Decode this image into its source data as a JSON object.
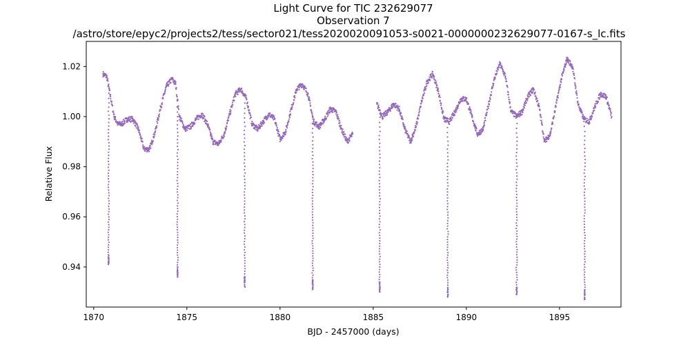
{
  "chart_data": {
    "type": "scatter",
    "title_lines": [
      "Light Curve for TIC 232629077",
      "Observation 7",
      "/astro/store/epyc2/projects2/tess/sector021/tess2020020091053-s0021-0000000232629077-0167-s_lc.fits"
    ],
    "xlabel": "BJD - 2457000 (days)",
    "ylabel": "Relative Flux",
    "xlim": [
      1869.6,
      1898.3
    ],
    "ylim": [
      0.924,
      1.03
    ],
    "xticks": [
      1870,
      1875,
      1880,
      1885,
      1890,
      1895
    ],
    "yticks": [
      0.94,
      0.96,
      0.98,
      1.0,
      1.02
    ],
    "ytick_labels": [
      "0.94",
      "0.96",
      "0.98",
      "1.00",
      "1.02"
    ],
    "grid": false,
    "point_color": "#9467bd",
    "series": [
      {
        "segments": [
          {
            "x": [
              1870.5,
              1870.7,
              1870.9,
              1871.1,
              1871.3,
              1871.5,
              1871.8,
              1872.1,
              1872.4,
              1872.7,
              1873.0,
              1873.3,
              1873.6,
              1873.9,
              1874.2,
              1874.4,
              1874.6,
              1874.9,
              1875.2,
              1875.5,
              1875.8,
              1876.1,
              1876.4,
              1876.7,
              1877.0,
              1877.3,
              1877.6,
              1877.9,
              1878.2,
              1878.5,
              1878.8,
              1879.1,
              1879.4,
              1879.7,
              1880.0,
              1880.3,
              1880.6,
              1880.9,
              1881.2,
              1881.5,
              1881.8,
              1882.1,
              1882.4,
              1882.7,
              1883.0,
              1883.3,
              1883.6,
              1883.9
            ],
            "y": [
              1.017,
              1.016,
              1.008,
              1.0,
              0.997,
              0.997,
              0.999,
              0.999,
              0.995,
              0.987,
              0.987,
              0.994,
              1.004,
              1.012,
              1.015,
              1.013,
              1.0,
              0.995,
              0.996,
              0.999,
              1.001,
              0.997,
              0.99,
              0.989,
              0.993,
              1.001,
              1.009,
              1.011,
              1.007,
              0.997,
              0.995,
              0.998,
              1.001,
              0.999,
              0.991,
              0.994,
              1.003,
              1.011,
              1.013,
              1.009,
              0.998,
              0.996,
              0.999,
              1.003,
              1.002,
              0.995,
              0.99,
              0.993
            ]
          },
          {
            "x": [
              1885.2,
              1885.5,
              1885.8,
              1886.1,
              1886.4,
              1886.7,
              1887.0,
              1887.3,
              1887.6,
              1887.9,
              1888.2,
              1888.5,
              1888.8,
              1889.1,
              1889.4,
              1889.7,
              1890.0,
              1890.3,
              1890.6,
              1890.9,
              1891.2,
              1891.5,
              1891.8,
              1892.1,
              1892.4,
              1892.7,
              1893.0,
              1893.3,
              1893.6,
              1893.9,
              1894.2,
              1894.5,
              1894.8,
              1895.1,
              1895.4,
              1895.7,
              1896.0,
              1896.3,
              1896.6,
              1896.9,
              1897.2,
              1897.5,
              1897.8
            ],
            "y": [
              1.005,
              1.0,
              1.002,
              1.005,
              1.003,
              0.995,
              0.99,
              0.996,
              1.006,
              1.014,
              1.017,
              1.01,
              0.999,
              0.998,
              1.002,
              1.007,
              1.007,
              1.0,
              0.993,
              0.995,
              1.005,
              1.015,
              1.021,
              1.016,
              1.002,
              1.0,
              1.002,
              1.008,
              1.011,
              1.004,
              0.99,
              0.993,
              1.004,
              1.015,
              1.023,
              1.02,
              1.005,
              0.999,
              0.998,
              1.004,
              1.009,
              1.008,
              1.0
            ]
          }
        ]
      }
    ],
    "transits": [
      {
        "x": 1870.8,
        "depth_min": 0.941
      },
      {
        "x": 1874.5,
        "depth_min": 0.936
      },
      {
        "x": 1878.1,
        "depth_min": 0.932
      },
      {
        "x": 1881.75,
        "depth_min": 0.931
      },
      {
        "x": 1885.35,
        "depth_min": 0.93
      },
      {
        "x": 1889.0,
        "depth_min": 0.928
      },
      {
        "x": 1892.7,
        "depth_min": 0.929
      },
      {
        "x": 1896.35,
        "depth_min": 0.927
      }
    ]
  }
}
